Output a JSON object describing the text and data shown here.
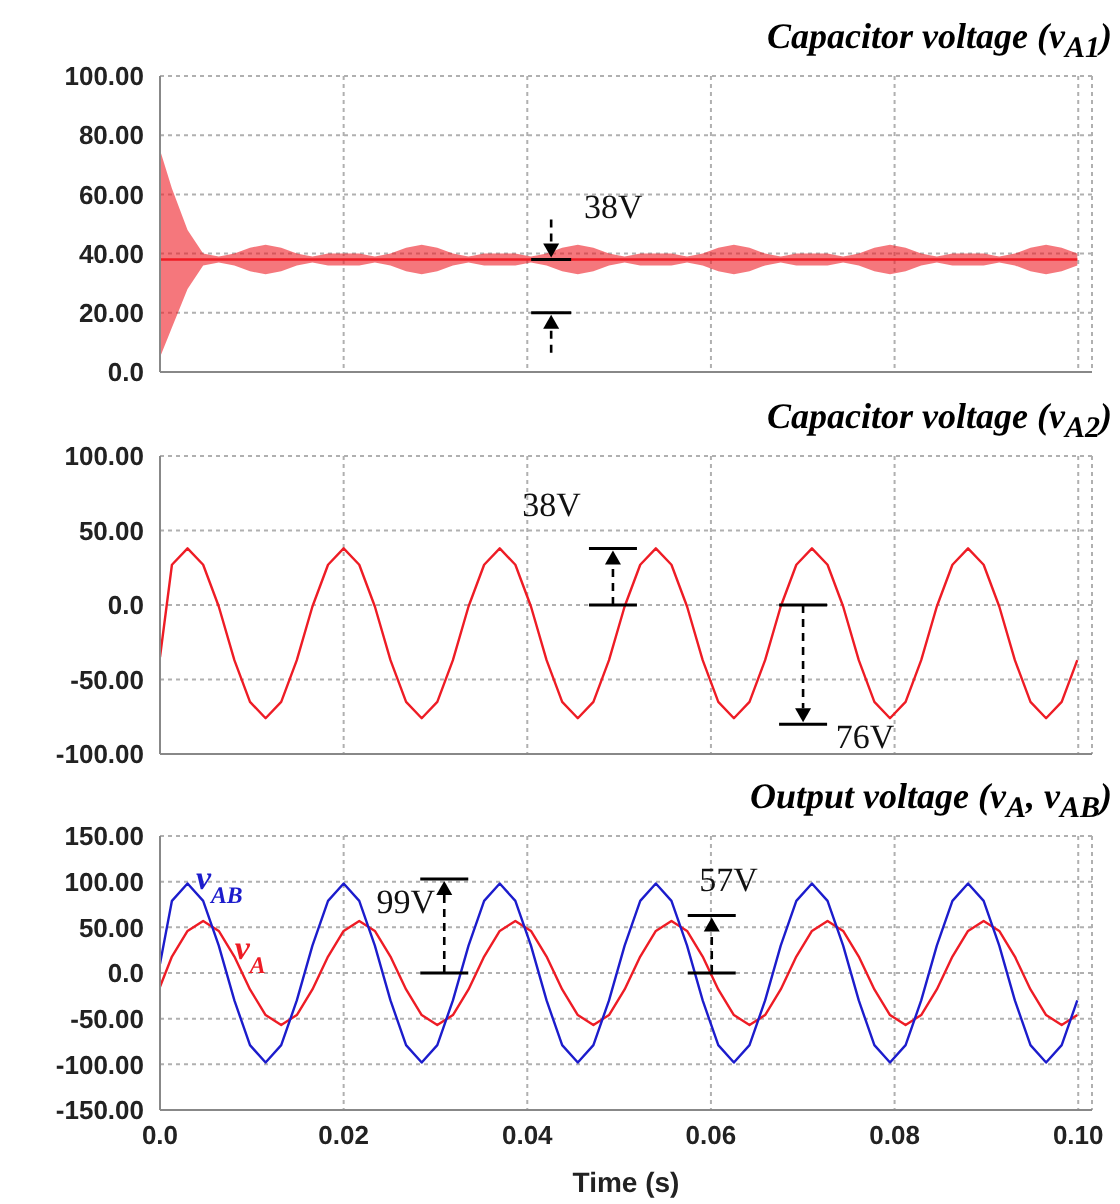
{
  "chart_data": [
    {
      "type": "line",
      "title": "Capacitor voltage (v$_{A1}$)",
      "x": [
        0,
        0.0013,
        0.003,
        0.0047,
        0.0064,
        0.0081,
        0.0098,
        0.0115,
        0.0132,
        0.0149,
        0.0166,
        0.0183,
        0.02,
        0.0217,
        0.0234,
        0.0251,
        0.0268,
        0.0285,
        0.0302,
        0.0319,
        0.0336,
        0.0353,
        0.037,
        0.0387,
        0.0404,
        0.0421,
        0.0438,
        0.0455,
        0.0472,
        0.0489,
        0.0506,
        0.0523,
        0.054,
        0.0557,
        0.0574,
        0.0591,
        0.0608,
        0.0625,
        0.0642,
        0.0659,
        0.0676,
        0.0693,
        0.071,
        0.0727,
        0.0744,
        0.0761,
        0.0778,
        0.0795,
        0.0812,
        0.0829,
        0.0846,
        0.0863,
        0.088,
        0.0897,
        0.0914,
        0.0931,
        0.0948,
        0.0965,
        0.0982,
        0.0999
      ],
      "series": [
        {
          "color": "#ee1c25",
          "values": [
            38,
            38,
            38,
            38,
            38,
            38,
            38,
            38,
            38,
            38,
            38,
            38,
            38,
            38,
            38,
            38,
            38,
            38,
            38,
            38,
            38,
            38,
            38,
            38,
            38,
            38,
            38,
            38,
            38,
            38,
            38,
            38,
            38,
            38,
            38,
            38,
            38,
            38,
            38,
            38,
            38,
            38,
            38,
            38,
            38,
            38,
            38,
            38,
            38,
            38,
            38,
            38,
            38,
            38,
            38,
            38,
            38,
            38,
            38,
            38
          ],
          "lower": [
            5,
            15,
            28,
            36,
            37,
            36,
            34,
            33,
            34,
            36,
            37,
            36,
            36,
            36,
            37,
            36,
            34,
            33,
            34,
            36,
            37,
            36,
            36,
            36,
            37,
            36,
            34,
            33,
            34,
            36,
            37,
            36,
            36,
            36,
            37,
            36,
            34,
            33,
            34,
            36,
            37,
            36,
            36,
            36,
            37,
            36,
            34,
            33,
            34,
            36,
            37,
            36,
            36,
            36,
            37,
            36,
            34,
            33,
            34,
            36
          ],
          "upper": [
            75,
            62,
            48,
            40,
            39,
            40,
            42,
            43,
            42,
            40,
            39,
            40,
            40,
            40,
            39,
            40,
            42,
            43,
            42,
            40,
            39,
            40,
            40,
            40,
            39,
            40,
            42,
            43,
            42,
            40,
            39,
            40,
            40,
            40,
            39,
            40,
            42,
            43,
            42,
            40,
            39,
            40,
            40,
            40,
            39,
            40,
            42,
            43,
            42,
            40,
            39,
            40,
            40,
            40,
            39,
            40,
            42,
            43,
            42,
            40
          ]
        }
      ],
      "xlim": [
        0,
        0.1015
      ],
      "xticks": [
        0,
        0.02,
        0.04,
        0.06,
        0.08,
        0.1
      ],
      "ylim": [
        0,
        100
      ],
      "yticks": [
        {
          "value": 0,
          "label": "0.0"
        },
        {
          "value": 20,
          "label": "20.00"
        },
        {
          "value": 40,
          "label": "40.00"
        },
        {
          "value": 60,
          "label": "60.00"
        },
        {
          "value": 80,
          "label": "80.00"
        },
        {
          "value": 100,
          "label": "100.00"
        }
      ],
      "tick_labels": "y",
      "grid": true,
      "annotations": [
        {
          "text": "38V",
          "x": 0.0426,
          "y": 38
        }
      ]
    },
    {
      "type": "line",
      "title": "Capacitor voltage (v$_{A2}$)",
      "x": [
        0,
        0.0013,
        0.003,
        0.0047,
        0.0064,
        0.0081,
        0.0098,
        0.0115,
        0.0132,
        0.0149,
        0.0166,
        0.0183,
        0.02,
        0.0217,
        0.0234,
        0.0251,
        0.0268,
        0.0285,
        0.0302,
        0.0319,
        0.0336,
        0.0353,
        0.037,
        0.0387,
        0.0404,
        0.0421,
        0.0438,
        0.0455,
        0.0472,
        0.0489,
        0.0506,
        0.0523,
        0.054,
        0.0557,
        0.0574,
        0.0591,
        0.0608,
        0.0625,
        0.0642,
        0.0659,
        0.0676,
        0.0693,
        0.071,
        0.0727,
        0.0744,
        0.0761,
        0.0778,
        0.0795,
        0.0812,
        0.0829,
        0.0846,
        0.0863,
        0.088,
        0.0897,
        0.0914,
        0.0931,
        0.0948,
        0.0965,
        0.0982,
        0.0999
      ],
      "series": [
        {
          "color": "#ee1c25",
          "values": [
            -35,
            27,
            38,
            27,
            -1,
            -37,
            -65,
            -76,
            -65,
            -37,
            -1,
            27,
            38,
            27,
            -1,
            -37,
            -65,
            -76,
            -65,
            -37,
            -1,
            27,
            38,
            27,
            -1,
            -37,
            -65,
            -76,
            -65,
            -37,
            -1,
            27,
            38,
            27,
            -1,
            -37,
            -65,
            -76,
            -65,
            -37,
            -1,
            27,
            38,
            27,
            -1,
            -37,
            -65,
            -76,
            -65,
            -37,
            -1,
            27,
            38,
            27,
            -1,
            -37,
            -65,
            -76,
            -65,
            -37
          ]
        }
      ],
      "xlim": [
        0,
        0.1015
      ],
      "xticks": [
        0,
        0.02,
        0.04,
        0.06,
        0.08,
        0.1
      ],
      "ylim": [
        -100,
        100
      ],
      "yticks": [
        {
          "value": -100,
          "label": "-100.00"
        },
        {
          "value": -50,
          "label": "-50.00"
        },
        {
          "value": 0,
          "label": "0.0"
        },
        {
          "value": 50,
          "label": "50.00"
        },
        {
          "value": 100,
          "label": "100.00"
        }
      ],
      "tick_labels": "y",
      "grid": true,
      "annotations": [
        "38V",
        "76V"
      ]
    },
    {
      "type": "line",
      "title": "Output voltage (v$_{A}$, v$_{AB}$)",
      "xlabel": "Time (s)",
      "x": [
        0,
        0.0013,
        0.003,
        0.0047,
        0.0064,
        0.0081,
        0.0098,
        0.0115,
        0.0132,
        0.0149,
        0.0166,
        0.0183,
        0.02,
        0.0217,
        0.0234,
        0.0251,
        0.0268,
        0.0285,
        0.0302,
        0.0319,
        0.0336,
        0.0353,
        0.037,
        0.0387,
        0.0404,
        0.0421,
        0.0438,
        0.0455,
        0.0472,
        0.0489,
        0.0506,
        0.0523,
        0.054,
        0.0557,
        0.0574,
        0.0591,
        0.0608,
        0.0625,
        0.0642,
        0.0659,
        0.0676,
        0.0693,
        0.071,
        0.0727,
        0.0744,
        0.0761,
        0.0778,
        0.0795,
        0.0812,
        0.0829,
        0.0846,
        0.0863,
        0.088,
        0.0897,
        0.0914,
        0.0931,
        0.0948,
        0.0965,
        0.0982,
        0.0999
      ],
      "series": [
        {
          "name": "v$_{A}$",
          "color": "#ee1c25",
          "values": [
            -15,
            18,
            46,
            57,
            46,
            18,
            -18,
            -46,
            -57,
            -46,
            -18,
            18,
            46,
            57,
            46,
            18,
            -18,
            -46,
            -57,
            -46,
            -18,
            18,
            46,
            57,
            46,
            18,
            -18,
            -46,
            -57,
            -46,
            -18,
            18,
            46,
            57,
            46,
            18,
            -18,
            -46,
            -57,
            -46,
            -18,
            18,
            46,
            57,
            46,
            18,
            -18,
            -46,
            -57,
            -46,
            -18,
            18,
            46,
            57,
            46,
            18,
            -18,
            -46,
            -57,
            -46
          ]
        },
        {
          "name": "v$_{AB}$",
          "color": "#1c1ccc",
          "values": [
            10,
            79,
            98,
            79,
            30,
            -30,
            -79,
            -98,
            -79,
            -30,
            30,
            79,
            98,
            79,
            30,
            -30,
            -79,
            -98,
            -79,
            -30,
            30,
            79,
            98,
            79,
            30,
            -30,
            -79,
            -98,
            -79,
            -30,
            30,
            79,
            98,
            79,
            30,
            -30,
            -79,
            -98,
            -79,
            -30,
            30,
            79,
            98,
            79,
            30,
            -30,
            -79,
            -98,
            -79,
            -30,
            30,
            79,
            98,
            79,
            30,
            -30,
            -79,
            -98,
            -79,
            -30
          ]
        }
      ],
      "xlim": [
        0,
        0.1015
      ],
      "xticks": [
        {
          "value": 0,
          "label": "0.0"
        },
        0.02,
        0.04,
        0.06,
        0.08,
        {
          "value": 0.1,
          "label": "0.10"
        }
      ],
      "ylim": [
        -150,
        150
      ],
      "yticks": [
        {
          "value": -150,
          "label": "-150.00"
        },
        {
          "value": -100,
          "label": "-100.00"
        },
        {
          "value": -50,
          "label": "-50.00"
        },
        {
          "value": 0,
          "label": "0.0"
        },
        {
          "value": 50,
          "label": "50.00"
        },
        {
          "value": 100,
          "label": "100.00"
        },
        {
          "value": 150,
          "label": "150.00"
        }
      ],
      "grid": true,
      "annotations": [
        "99V",
        "57V"
      ]
    }
  ]
}
